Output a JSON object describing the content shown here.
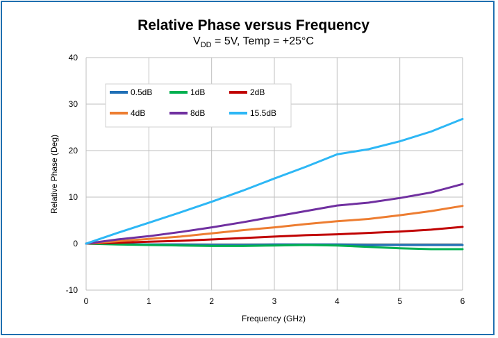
{
  "chart_data": {
    "type": "line",
    "title": "Relative Phase versus Frequency",
    "subtitle": {
      "prefix": "V",
      "subscript": "DD",
      "suffix": " = 5V, Temp = +25°C"
    },
    "xlabel": "Frequency (GHz)",
    "ylabel": "Relative Phase (Deg)",
    "xlim": [
      0,
      6
    ],
    "ylim": [
      -10,
      40
    ],
    "xticks": [
      "0",
      "1",
      "2",
      "3",
      "4",
      "5",
      "6"
    ],
    "yticks": [
      "-10",
      "0",
      "10",
      "20",
      "30",
      "40"
    ],
    "grid": true,
    "legend_position": "top-left inside",
    "series": [
      {
        "name": "0.5dB",
        "color": "#1f6fb5",
        "x": [
          0,
          0.5,
          1,
          1.5,
          2,
          2.5,
          3,
          3.5,
          4,
          4.5,
          5,
          5.5,
          6
        ],
        "y": [
          0,
          -0.1,
          -0.2,
          -0.2,
          -0.3,
          -0.3,
          -0.2,
          -0.2,
          -0.2,
          -0.3,
          -0.3,
          -0.3,
          -0.3
        ]
      },
      {
        "name": "1dB",
        "color": "#00b050",
        "x": [
          0,
          0.5,
          1,
          1.5,
          2,
          2.5,
          3,
          3.5,
          4,
          4.5,
          5,
          5.5,
          6
        ],
        "y": [
          0,
          -0.2,
          -0.3,
          -0.4,
          -0.5,
          -0.5,
          -0.4,
          -0.3,
          -0.4,
          -0.7,
          -1.0,
          -1.2,
          -1.2
        ]
      },
      {
        "name": "2dB",
        "color": "#c00000",
        "x": [
          0,
          0.5,
          1,
          1.5,
          2,
          2.5,
          3,
          3.5,
          4,
          4.5,
          5,
          5.5,
          6
        ],
        "y": [
          0,
          0.2,
          0.4,
          0.6,
          0.9,
          1.2,
          1.5,
          1.8,
          2.0,
          2.3,
          2.6,
          3.0,
          3.6
        ]
      },
      {
        "name": "4dB",
        "color": "#ed7d31",
        "x": [
          0,
          0.5,
          1,
          1.5,
          2,
          2.5,
          3,
          3.5,
          4,
          4.5,
          5,
          5.5,
          6
        ],
        "y": [
          0,
          0.5,
          1.0,
          1.5,
          2.2,
          2.9,
          3.5,
          4.2,
          4.8,
          5.3,
          6.1,
          7.0,
          8.1
        ]
      },
      {
        "name": "8dB",
        "color": "#7030a0",
        "x": [
          0,
          0.5,
          1,
          1.5,
          2,
          2.5,
          3,
          3.5,
          4,
          4.5,
          5,
          5.5,
          6
        ],
        "y": [
          0,
          0.9,
          1.6,
          2.5,
          3.5,
          4.6,
          5.8,
          7.0,
          8.2,
          8.8,
          9.8,
          11.0,
          12.8
        ]
      },
      {
        "name": "15.5dB",
        "color": "#2db7f5",
        "x": [
          0,
          0.5,
          1,
          1.5,
          2,
          2.5,
          3,
          3.5,
          4,
          4.5,
          5,
          5.5,
          6
        ],
        "y": [
          0,
          2.3,
          4.5,
          6.7,
          9.0,
          11.4,
          14.0,
          16.5,
          19.2,
          20.3,
          22.0,
          24.1,
          26.8
        ]
      }
    ]
  }
}
